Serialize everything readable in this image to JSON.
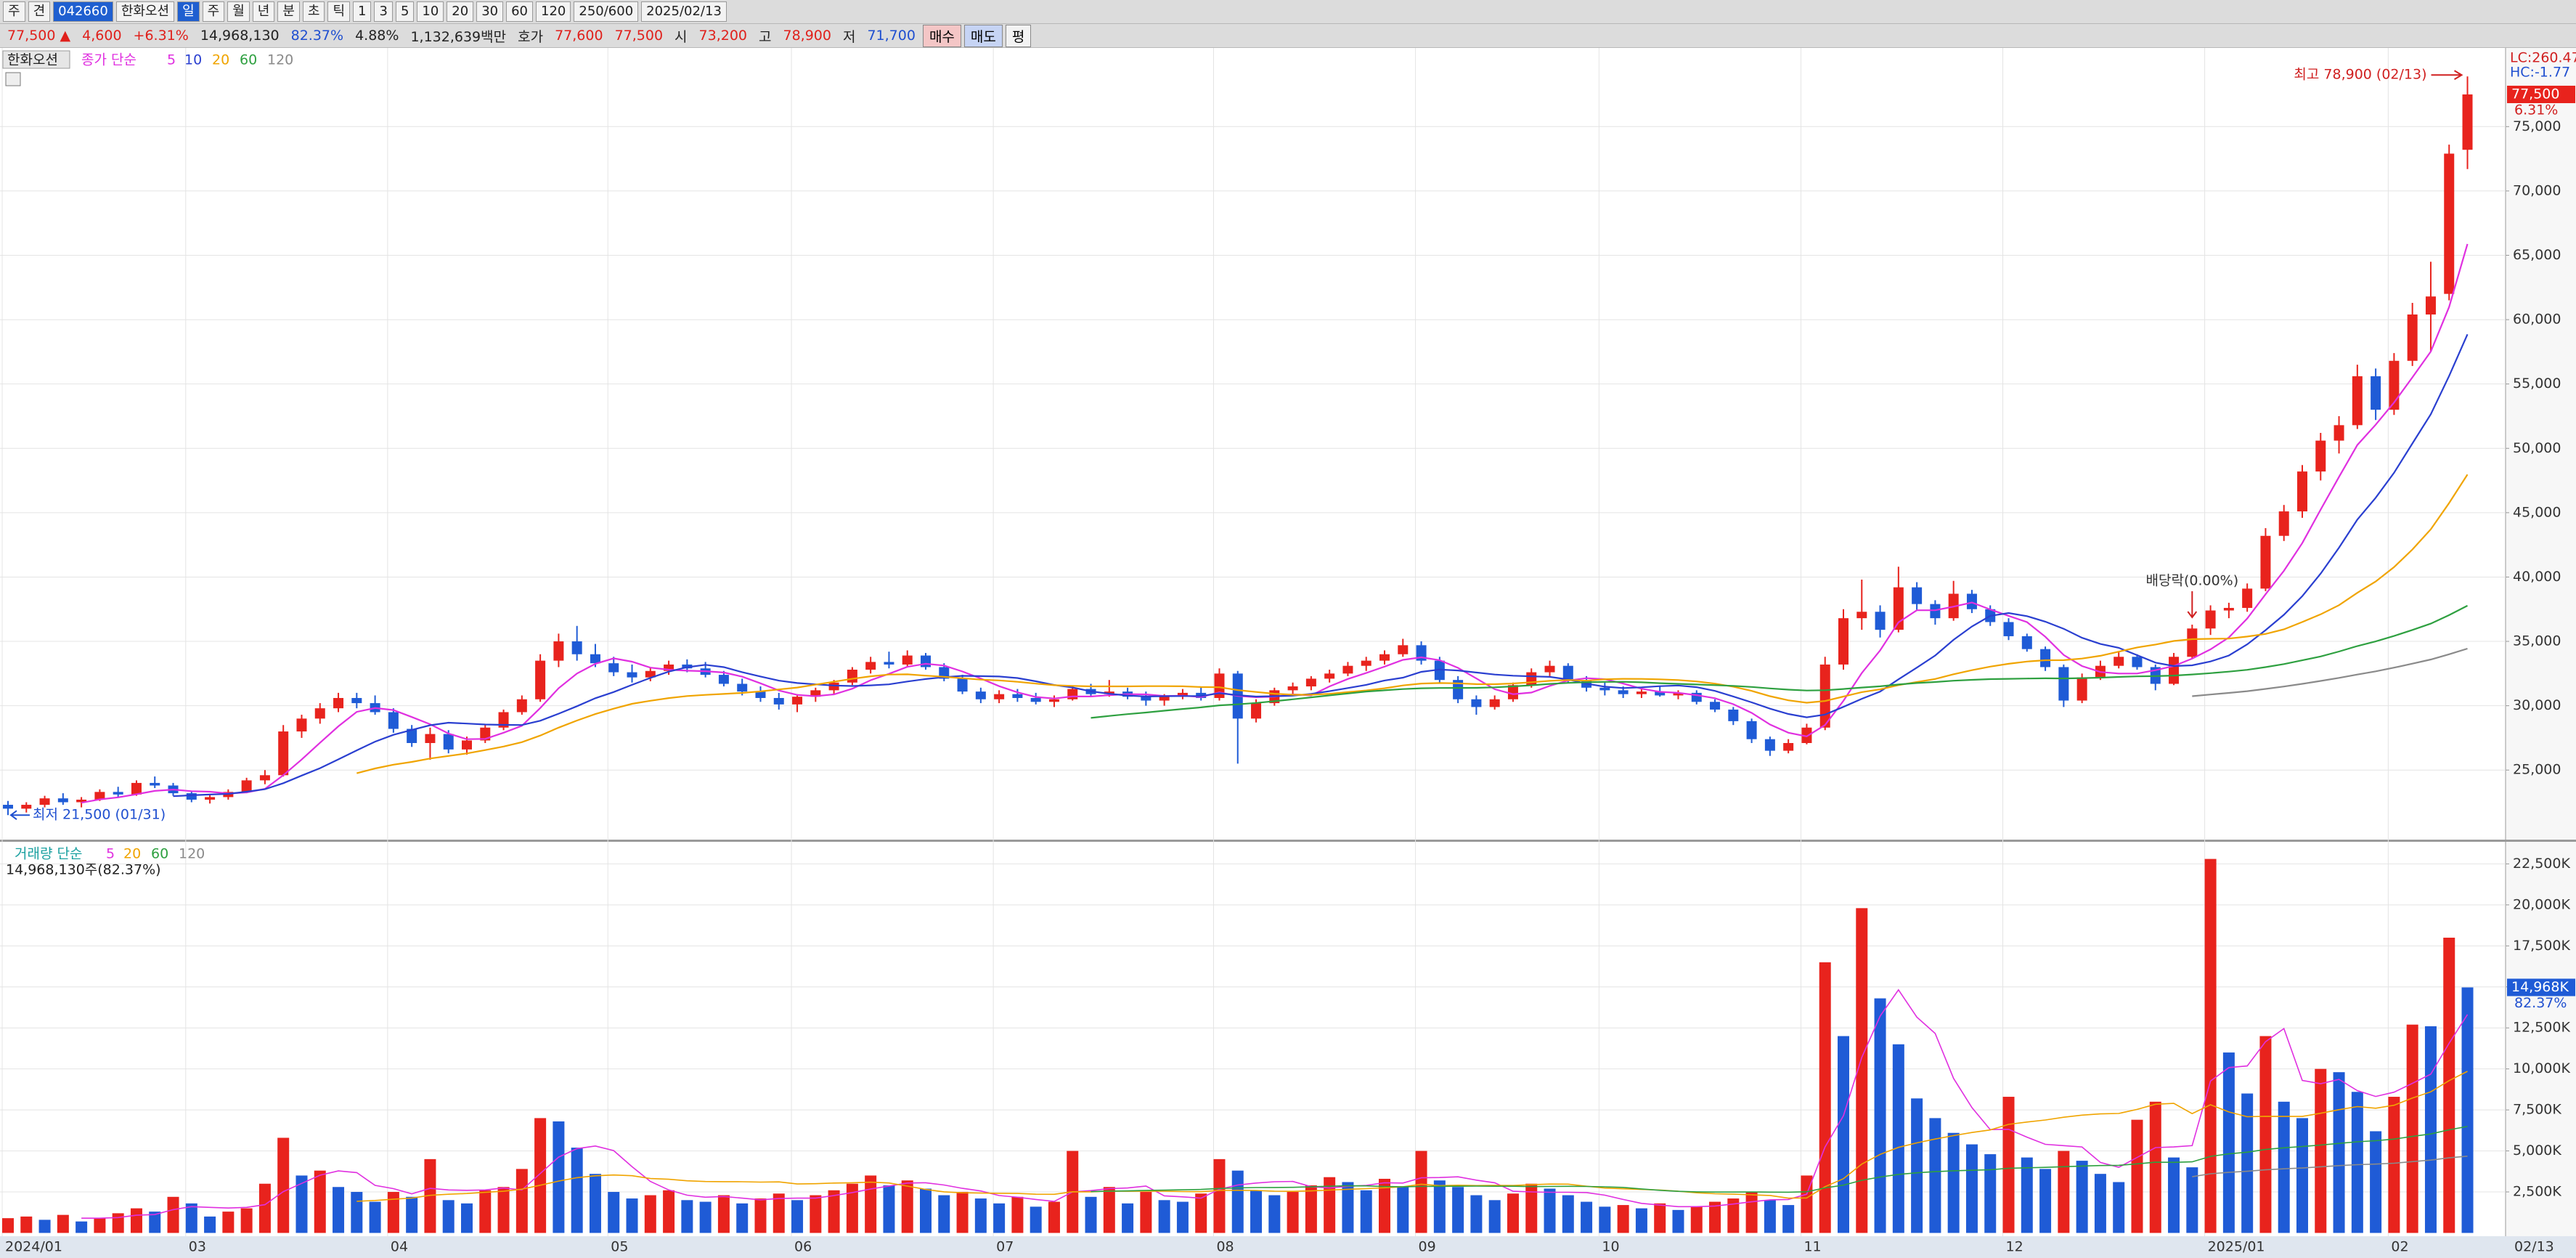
{
  "toolbar": {
    "row1": [
      "주",
      "견",
      "042660",
      "한화오션",
      "일",
      "주",
      "월",
      "년",
      "분",
      "초",
      "틱",
      "1",
      "3",
      "5",
      "10",
      "20",
      "30",
      "60",
      "120",
      "250/600",
      "2025/02/13"
    ],
    "selected": [
      2,
      4
    ],
    "row2": [
      {
        "text": "77,500 ▲",
        "color": "#e0201b"
      },
      {
        "text": "4,600",
        "color": "#e0201b"
      },
      {
        "text": "+6.31%",
        "color": "#e0201b"
      },
      {
        "text": "14,968,130",
        "color": "#222"
      },
      {
        "text": "82.37%",
        "color": "#1f4fd0"
      },
      {
        "text": "4.88%",
        "color": "#222"
      },
      {
        "text": "1,132,639백만",
        "color": "#222"
      },
      {
        "text": "호가",
        "color": "#222"
      },
      {
        "text": "77,600",
        "color": "#e0201b"
      },
      {
        "text": "77,500",
        "color": "#e0201b"
      },
      {
        "text": "시",
        "color": "#222"
      },
      {
        "text": "73,200",
        "color": "#e0201b"
      },
      {
        "text": "고",
        "color": "#222"
      },
      {
        "text": "78,900",
        "color": "#e0201b"
      },
      {
        "text": "저",
        "color": "#222"
      },
      {
        "text": "71,700",
        "color": "#1f4fd0"
      }
    ],
    "buttons": [
      {
        "text": "매수",
        "color": "#f4c6c6"
      },
      {
        "text": "매도",
        "color": "#c6d4f4"
      },
      {
        "text": "평",
        "color": "#f3f3f3"
      }
    ]
  },
  "chart_data": {
    "type": "candlestick",
    "stock_name": "한화오션",
    "price_legend": "종가 단순",
    "volume_legend": "거래량 단순",
    "volume_summary": "14,968,130주(82.37%)",
    "lc": "LC:260.47",
    "hc": "HC:-1.77",
    "price_tag": "77,500",
    "price_change": "6.31%",
    "volume_tag": "14,968K",
    "volume_change": "82.37%",
    "last_date": "02/13",
    "high_note": "최고 78,900 (02/13)",
    "low_note": "최저 21,500 (01/31)",
    "dividend_note": "배당락(0.00%)",
    "up_color": "#e8231d",
    "down_color": "#1f5bd6",
    "ma_periods": [
      5,
      10,
      20,
      60,
      120
    ],
    "ma_colors": [
      "#e030e0",
      "#2a3fd0",
      "#f0a400",
      "#2ea040",
      "#8a8a8a"
    ],
    "volume_ma_periods": [
      5,
      20,
      60,
      120
    ],
    "volume_ma_colors": [
      "#e030e0",
      "#f0a400",
      "#2ea040",
      "#8a8a8a"
    ],
    "ylim": [
      19650,
      81000
    ],
    "yticks": [
      {
        "value": 25000,
        "label": "25,000"
      },
      {
        "value": 30000,
        "label": "30,000"
      },
      {
        "value": 35000,
        "label": "35,000"
      },
      {
        "value": 40000,
        "label": "40,000"
      },
      {
        "value": 45000,
        "label": "45,000"
      },
      {
        "value": 50000,
        "label": "50,000"
      },
      {
        "value": 55000,
        "label": "55,000"
      },
      {
        "value": 60000,
        "label": "60,000"
      },
      {
        "value": 65000,
        "label": "65,000"
      },
      {
        "value": 70000,
        "label": "70,000"
      },
      {
        "value": 75000,
        "label": "75,000"
      }
    ],
    "volume_ylim": [
      -200,
      23800
    ],
    "volume_yticks": [
      {
        "value": 2500,
        "label": "2,500K"
      },
      {
        "value": 5000,
        "label": "5,000K"
      },
      {
        "value": 7500,
        "label": "7,500K"
      },
      {
        "value": 10000,
        "label": "10,000K"
      },
      {
        "value": 12500,
        "label": "12,500K"
      },
      {
        "value": 15000,
        "label": "15,000K"
      },
      {
        "value": 17500,
        "label": "17,500K"
      },
      {
        "value": 20000,
        "label": "20,000K"
      },
      {
        "value": 22500,
        "label": "22,500K"
      }
    ],
    "grid": true,
    "categories": [
      "2024/01",
      null,
      null,
      null,
      null,
      null,
      null,
      null,
      null,
      null,
      "03",
      null,
      null,
      null,
      null,
      null,
      null,
      null,
      null,
      null,
      null,
      "04",
      null,
      null,
      null,
      null,
      null,
      null,
      null,
      null,
      null,
      null,
      null,
      "05",
      null,
      null,
      null,
      null,
      null,
      null,
      null,
      null,
      null,
      "06",
      null,
      null,
      null,
      null,
      null,
      null,
      null,
      null,
      null,
      null,
      "07",
      null,
      null,
      null,
      null,
      null,
      null,
      null,
      null,
      null,
      null,
      null,
      "08",
      null,
      null,
      null,
      null,
      null,
      null,
      null,
      null,
      null,
      null,
      "09",
      null,
      null,
      null,
      null,
      null,
      null,
      null,
      null,
      null,
      "10",
      null,
      null,
      null,
      null,
      null,
      null,
      null,
      null,
      null,
      null,
      "11",
      null,
      null,
      null,
      null,
      null,
      null,
      null,
      null,
      null,
      null,
      "12",
      null,
      null,
      null,
      null,
      null,
      null,
      null,
      null,
      null,
      null,
      "2025/01",
      null,
      null,
      null,
      null,
      null,
      null,
      null,
      null,
      null,
      "02",
      null,
      null,
      null,
      null
    ],
    "candles": [
      [
        22300,
        22600,
        21500,
        22000
      ],
      [
        22000,
        22500,
        21700,
        22300
      ],
      [
        22300,
        23000,
        22100,
        22800
      ],
      [
        22800,
        23200,
        22300,
        22500
      ],
      [
        22500,
        22900,
        22100,
        22700
      ],
      [
        22700,
        23500,
        22600,
        23300
      ],
      [
        23300,
        23700,
        22900,
        23100
      ],
      [
        23100,
        24200,
        23000,
        24000
      ],
      [
        24000,
        24500,
        23600,
        23800
      ],
      [
        23800,
        24000,
        23000,
        23200
      ],
      [
        23200,
        23400,
        22500,
        22700
      ],
      [
        22700,
        23100,
        22400,
        22900
      ],
      [
        22900,
        23500,
        22700,
        23300
      ],
      [
        23300,
        24400,
        23200,
        24200
      ],
      [
        24200,
        25000,
        23900,
        24600
      ],
      [
        24600,
        28500,
        24500,
        28000
      ],
      [
        28000,
        29300,
        27500,
        29000
      ],
      [
        29000,
        30200,
        28600,
        29800
      ],
      [
        29800,
        31000,
        29500,
        30600
      ],
      [
        30600,
        31000,
        29800,
        30200
      ],
      [
        30200,
        30800,
        29300,
        29500
      ],
      [
        29500,
        29800,
        27900,
        28200
      ],
      [
        28200,
        28500,
        26800,
        27100
      ],
      [
        27100,
        28300,
        25800,
        27800
      ],
      [
        27800,
        28100,
        26300,
        26600
      ],
      [
        26600,
        27600,
        26200,
        27300
      ],
      [
        27300,
        28500,
        27100,
        28300
      ],
      [
        28300,
        29700,
        28100,
        29500
      ],
      [
        29500,
        30800,
        29300,
        30500
      ],
      [
        30500,
        34000,
        30300,
        33500
      ],
      [
        33500,
        35600,
        33000,
        35000
      ],
      [
        35000,
        36200,
        33500,
        34000
      ],
      [
        34000,
        34800,
        33000,
        33300
      ],
      [
        33300,
        33800,
        32300,
        32600
      ],
      [
        32600,
        33200,
        31800,
        32200
      ],
      [
        32200,
        33000,
        31900,
        32700
      ],
      [
        32700,
        33500,
        32400,
        33200
      ],
      [
        33200,
        33600,
        32600,
        32900
      ],
      [
        32900,
        33400,
        32200,
        32400
      ],
      [
        32400,
        32700,
        31500,
        31700
      ],
      [
        31700,
        32100,
        30800,
        31100
      ],
      [
        31100,
        31500,
        30300,
        30600
      ],
      [
        30600,
        31000,
        29700,
        30100
      ],
      [
        30100,
        30900,
        29500,
        30700
      ],
      [
        30700,
        31400,
        30300,
        31200
      ],
      [
        31200,
        32000,
        30900,
        31800
      ],
      [
        31800,
        33000,
        31600,
        32800
      ],
      [
        32800,
        33800,
        32500,
        33400
      ],
      [
        33400,
        34200,
        32900,
        33200
      ],
      [
        33200,
        34300,
        33000,
        33900
      ],
      [
        33900,
        34100,
        32800,
        33000
      ],
      [
        33000,
        33300,
        31900,
        32100
      ],
      [
        32100,
        32400,
        30900,
        31100
      ],
      [
        31100,
        31400,
        30200,
        30500
      ],
      [
        30500,
        31200,
        30200,
        30900
      ],
      [
        30900,
        31300,
        30300,
        30600
      ],
      [
        30600,
        31000,
        30100,
        30300
      ],
      [
        30300,
        30800,
        29900,
        30500
      ],
      [
        30500,
        31500,
        30400,
        31300
      ],
      [
        31300,
        31700,
        30700,
        30900
      ],
      [
        30900,
        32000,
        30700,
        31100
      ],
      [
        31100,
        31400,
        30500,
        30700
      ],
      [
        30700,
        31100,
        30000,
        30400
      ],
      [
        30400,
        30900,
        30000,
        30700
      ],
      [
        30700,
        31300,
        30500,
        31000
      ],
      [
        31000,
        31400,
        30400,
        30600
      ],
      [
        30600,
        32900,
        30400,
        32500
      ],
      [
        32500,
        32700,
        25500,
        29000
      ],
      [
        29000,
        30500,
        28700,
        30200
      ],
      [
        30200,
        31400,
        30000,
        31200
      ],
      [
        31200,
        31800,
        30900,
        31500
      ],
      [
        31500,
        32300,
        31200,
        32100
      ],
      [
        32100,
        32800,
        31800,
        32500
      ],
      [
        32500,
        33400,
        32300,
        33100
      ],
      [
        33100,
        33800,
        32700,
        33500
      ],
      [
        33500,
        34300,
        33200,
        34000
      ],
      [
        34000,
        35200,
        33800,
        34700
      ],
      [
        34700,
        35000,
        33200,
        33500
      ],
      [
        33500,
        33800,
        31700,
        32000
      ],
      [
        32000,
        32300,
        30200,
        30500
      ],
      [
        30500,
        30800,
        29300,
        29900
      ],
      [
        29900,
        30800,
        29700,
        30500
      ],
      [
        30500,
        31800,
        30300,
        31600
      ],
      [
        31600,
        32900,
        31400,
        32600
      ],
      [
        32600,
        33500,
        32300,
        33100
      ],
      [
        33100,
        33300,
        31800,
        32000
      ],
      [
        32000,
        32300,
        31100,
        31400
      ],
      [
        31400,
        31800,
        30800,
        31200
      ],
      [
        31200,
        31500,
        30600,
        30900
      ],
      [
        30900,
        31400,
        30600,
        31100
      ],
      [
        31100,
        31500,
        30700,
        30800
      ],
      [
        30800,
        31200,
        30500,
        31000
      ],
      [
        31000,
        31200,
        30100,
        30300
      ],
      [
        30300,
        30500,
        29500,
        29700
      ],
      [
        29700,
        29900,
        28500,
        28800
      ],
      [
        28800,
        29000,
        27100,
        27400
      ],
      [
        27400,
        27600,
        26100,
        26500
      ],
      [
        26500,
        27400,
        26300,
        27100
      ],
      [
        27100,
        28600,
        27000,
        28300
      ],
      [
        28300,
        33800,
        28100,
        33200
      ],
      [
        33200,
        37500,
        32800,
        36800
      ],
      [
        36800,
        39800,
        35900,
        37300
      ],
      [
        37300,
        37800,
        35300,
        35900
      ],
      [
        35900,
        40800,
        35700,
        39200
      ],
      [
        39200,
        39600,
        37400,
        37900
      ],
      [
        37900,
        38200,
        36300,
        36800
      ],
      [
        36800,
        39700,
        36600,
        38700
      ],
      [
        38700,
        39000,
        37200,
        37500
      ],
      [
        37500,
        37800,
        36200,
        36500
      ],
      [
        36500,
        36800,
        35100,
        35400
      ],
      [
        35400,
        35600,
        34200,
        34400
      ],
      [
        34400,
        34600,
        32700,
        33000
      ],
      [
        33000,
        33200,
        29900,
        30400
      ],
      [
        30400,
        32500,
        30200,
        32200
      ],
      [
        32200,
        33500,
        32000,
        33100
      ],
      [
        33100,
        34200,
        32900,
        33800
      ],
      [
        33800,
        34000,
        32800,
        33000
      ],
      [
        33000,
        33200,
        31200,
        31700
      ],
      [
        31700,
        34100,
        31600,
        33800
      ],
      [
        33800,
        36300,
        33700,
        36000
      ],
      [
        36000,
        37800,
        35500,
        37400
      ],
      [
        37400,
        38000,
        36800,
        37600
      ],
      [
        37600,
        39500,
        37300,
        39100
      ],
      [
        39100,
        43800,
        38900,
        43200
      ],
      [
        43200,
        45600,
        42800,
        45100
      ],
      [
        45100,
        48700,
        44600,
        48200
      ],
      [
        48200,
        51200,
        47500,
        50600
      ],
      [
        50600,
        52500,
        49600,
        51800
      ],
      [
        51800,
        56500,
        51500,
        55600
      ],
      [
        55600,
        56200,
        52200,
        53000
      ],
      [
        53000,
        57400,
        52600,
        56800
      ],
      [
        56800,
        61300,
        56400,
        60400
      ],
      [
        60400,
        64500,
        57500,
        61800
      ],
      [
        62000,
        73600,
        61500,
        72900
      ],
      [
        73200,
        78900,
        71700,
        77500
      ]
    ],
    "volume": [
      900,
      1000,
      800,
      1100,
      700,
      900,
      1200,
      1500,
      1300,
      2200,
      1800,
      1000,
      1300,
      1500,
      3000,
      5800,
      3500,
      3800,
      2800,
      2500,
      1900,
      2500,
      2200,
      4500,
      2000,
      1800,
      2600,
      2800,
      3900,
      7000,
      6800,
      5200,
      3600,
      2500,
      2100,
      2300,
      2600,
      2000,
      1900,
      2300,
      1800,
      2100,
      2400,
      2000,
      2300,
      2600,
      3000,
      3500,
      2900,
      3200,
      2700,
      2300,
      2500,
      2100,
      1800,
      2200,
      1600,
      1900,
      5000,
      2200,
      2800,
      1800,
      2500,
      2000,
      1900,
      2400,
      4500,
      3800,
      2600,
      2300,
      2500,
      2900,
      3400,
      3100,
      2600,
      3300,
      2800,
      5000,
      3200,
      2800,
      2300,
      2000,
      2400,
      3000,
      2700,
      2300,
      1900,
      1600,
      1700,
      1500,
      1800,
      1400,
      1600,
      1900,
      2100,
      2500,
      2000,
      1700,
      3500,
      16500,
      12000,
      19800,
      14300,
      11500,
      8200,
      7000,
      6100,
      5400,
      4800,
      8300,
      4600,
      3900,
      5000,
      4400,
      3600,
      3100,
      6900,
      8000,
      4600,
      4000,
      22800,
      11000,
      8500,
      12000,
      8000,
      7000,
      10000,
      9800,
      8600,
      6200,
      8300,
      12700,
      12600,
      18000,
      14968
    ]
  }
}
